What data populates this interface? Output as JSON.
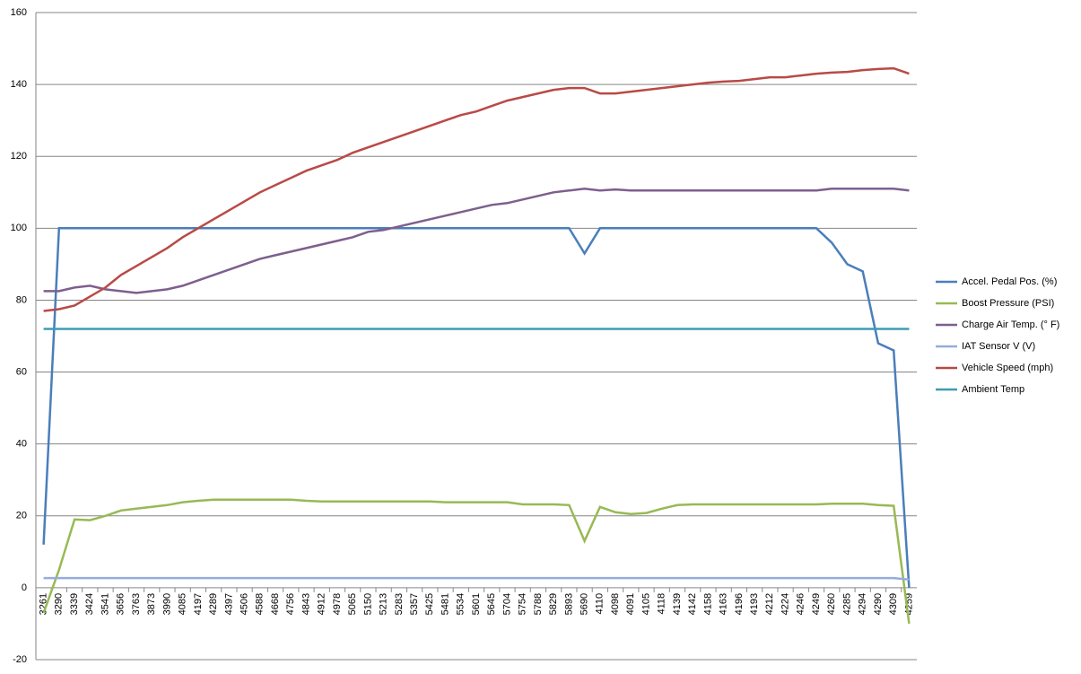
{
  "chart_data": {
    "type": "line",
    "categories": [
      "3261",
      "3290",
      "3339",
      "3424",
      "3541",
      "3656",
      "3763",
      "3873",
      "3990",
      "4085",
      "4197",
      "4289",
      "4397",
      "4506",
      "4588",
      "4668",
      "4756",
      "4843",
      "4912",
      "4978",
      "5065",
      "5150",
      "5213",
      "5283",
      "5357",
      "5425",
      "5481",
      "5534",
      "5601",
      "5645",
      "5704",
      "5754",
      "5788",
      "5829",
      "5893",
      "5690",
      "4110",
      "4098",
      "4091",
      "4105",
      "4118",
      "4139",
      "4142",
      "4158",
      "4163",
      "4196",
      "4193",
      "4212",
      "4224",
      "4246",
      "4249",
      "4260",
      "4285",
      "4294",
      "4290",
      "4309",
      "4259"
    ],
    "series": [
      {
        "name": "Accel. Pedal Pos. (%)",
        "color": "#4a7ebb",
        "values": [
          12,
          100,
          100,
          100,
          100,
          100,
          100,
          100,
          100,
          100,
          100,
          100,
          100,
          100,
          100,
          100,
          100,
          100,
          100,
          100,
          100,
          100,
          100,
          100,
          100,
          100,
          100,
          100,
          100,
          100,
          100,
          100,
          100,
          100,
          100,
          93,
          100,
          100,
          100,
          100,
          100,
          100,
          100,
          100,
          100,
          100,
          100,
          100,
          100,
          100,
          100,
          96,
          90,
          88,
          68,
          66,
          0
        ]
      },
      {
        "name": "Boost Pressure (PSI)",
        "color": "#98b954",
        "values": [
          -7,
          5,
          19,
          18.8,
          20,
          21.5,
          22,
          22.5,
          23,
          23.8,
          24.2,
          24.5,
          24.5,
          24.5,
          24.5,
          24.5,
          24.5,
          24.2,
          24,
          24,
          24,
          24,
          24,
          24,
          24,
          24,
          23.8,
          23.8,
          23.8,
          23.8,
          23.8,
          23.2,
          23.2,
          23.2,
          23,
          13,
          22.5,
          21,
          20.5,
          20.8,
          22,
          23,
          23.2,
          23.2,
          23.2,
          23.2,
          23.2,
          23.2,
          23.2,
          23.2,
          23.2,
          23.4,
          23.4,
          23.4,
          23,
          22.8,
          -10
        ]
      },
      {
        "name": "Charge Air Temp. (° F)",
        "color": "#7d5f8e",
        "values": [
          82.5,
          82.5,
          83.5,
          84,
          83,
          82.5,
          82,
          82.5,
          83,
          84,
          85.5,
          87,
          88.5,
          90,
          91.5,
          92.5,
          93.5,
          94.5,
          95.5,
          96.5,
          97.5,
          99,
          99.5,
          100.5,
          101.5,
          102.5,
          103.5,
          104.5,
          105.5,
          106.5,
          107,
          108,
          109,
          110,
          110.5,
          111,
          110.5,
          110.8,
          110.5,
          110.5,
          110.5,
          110.5,
          110.5,
          110.5,
          110.5,
          110.5,
          110.5,
          110.5,
          110.5,
          110.5,
          110.5,
          111,
          111,
          111,
          111,
          111,
          110.5
        ]
      },
      {
        "name": "IAT Sensor V (V)",
        "color": "#95acdd",
        "values": [
          2.7,
          2.7,
          2.7,
          2.7,
          2.7,
          2.7,
          2.7,
          2.7,
          2.7,
          2.7,
          2.7,
          2.7,
          2.7,
          2.7,
          2.7,
          2.7,
          2.7,
          2.7,
          2.7,
          2.7,
          2.7,
          2.7,
          2.7,
          2.7,
          2.7,
          2.7,
          2.7,
          2.7,
          2.7,
          2.7,
          2.7,
          2.7,
          2.7,
          2.7,
          2.7,
          2.7,
          2.7,
          2.7,
          2.7,
          2.7,
          2.7,
          2.7,
          2.7,
          2.7,
          2.7,
          2.7,
          2.7,
          2.7,
          2.7,
          2.7,
          2.7,
          2.7,
          2.7,
          2.7,
          2.7,
          2.7,
          2.3
        ]
      },
      {
        "name": "Vehicle Speed (mph)",
        "color": "#b94a46",
        "values": [
          77,
          77.5,
          78.5,
          81,
          83.5,
          87,
          89.5,
          92,
          94.5,
          97.5,
          100,
          102.5,
          105,
          107.5,
          110,
          112,
          114,
          116,
          117.5,
          119,
          121,
          122.5,
          124,
          125.5,
          127,
          128.5,
          130,
          131.5,
          132.5,
          134,
          135.5,
          136.5,
          137.5,
          138.5,
          139,
          139,
          137.5,
          137.5,
          138,
          138.5,
          139,
          139.5,
          140,
          140.5,
          140.8,
          141,
          141.5,
          142,
          142,
          142.5,
          143,
          143.3,
          143.5,
          144,
          144.3,
          144.5,
          143
        ]
      },
      {
        "name": "Ambient Temp",
        "color": "#3d9cb0",
        "values": [
          72,
          72,
          72,
          72,
          72,
          72,
          72,
          72,
          72,
          72,
          72,
          72,
          72,
          72,
          72,
          72,
          72,
          72,
          72,
          72,
          72,
          72,
          72,
          72,
          72,
          72,
          72,
          72,
          72,
          72,
          72,
          72,
          72,
          72,
          72,
          72,
          72,
          72,
          72,
          72,
          72,
          72,
          72,
          72,
          72,
          72,
          72,
          72,
          72,
          72,
          72,
          72,
          72,
          72,
          72,
          72,
          72
        ]
      }
    ],
    "ylim": [
      -20,
      160
    ],
    "yticks": [
      -20,
      0,
      20,
      40,
      60,
      80,
      100,
      120,
      140,
      160
    ],
    "grid": true,
    "legend": "right"
  }
}
